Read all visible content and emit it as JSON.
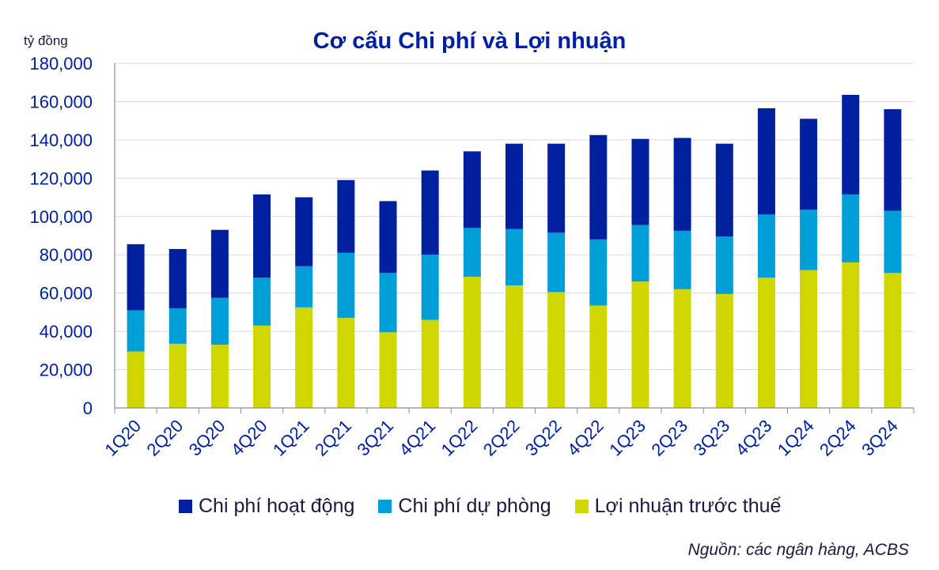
{
  "chart_data": {
    "type": "bar",
    "stacked": true,
    "title": "Cơ cấu Chi phí và Lợi nhuận",
    "ylabel": "tỷ đồng",
    "xlabel": "",
    "ylim": [
      0,
      180000
    ],
    "yticks": [
      "0",
      "20,000",
      "40,000",
      "60,000",
      "80,000",
      "100,000",
      "120,000",
      "140,000",
      "160,000",
      "180,000"
    ],
    "grid": true,
    "legend_position": "bottom",
    "categories": [
      "1Q20",
      "2Q20",
      "3Q20",
      "4Q20",
      "1Q21",
      "2Q21",
      "3Q21",
      "4Q21",
      "1Q22",
      "2Q22",
      "3Q22",
      "4Q22",
      "1Q23",
      "2Q23",
      "3Q23",
      "4Q23",
      "1Q24",
      "2Q24",
      "3Q24"
    ],
    "series": [
      {
        "name": "Lợi nhuận trước thuế",
        "color": "#cfd600",
        "values": [
          29500,
          33500,
          33000,
          43000,
          52500,
          47000,
          39500,
          46000,
          68500,
          64000,
          60500,
          53500,
          66000,
          62000,
          59500,
          68000,
          72000,
          76000,
          70500
        ]
      },
      {
        "name": "Chi phí dự phòng",
        "color": "#009fd8",
        "values": [
          21500,
          18500,
          24500,
          25000,
          21500,
          34000,
          31000,
          34000,
          25500,
          29500,
          31000,
          34500,
          29500,
          30500,
          30000,
          33000,
          31500,
          35500,
          32500
        ]
      },
      {
        "name": "Chi phí hoạt động",
        "color": "#00209f",
        "values": [
          34500,
          31000,
          35500,
          43500,
          36000,
          38000,
          37500,
          44000,
          40000,
          44500,
          46500,
          54500,
          45000,
          48500,
          48500,
          55500,
          47500,
          52000,
          53000
        ]
      }
    ]
  },
  "legend_order": [
    "Chi phí hoạt động",
    "Chi phí dự phòng",
    "Lợi nhuận trước thuế"
  ],
  "source": "Nguồn: các ngân hàng, ACBS",
  "colors": {
    "axis_text": "#00209f",
    "grid": "#d9d9d9"
  }
}
